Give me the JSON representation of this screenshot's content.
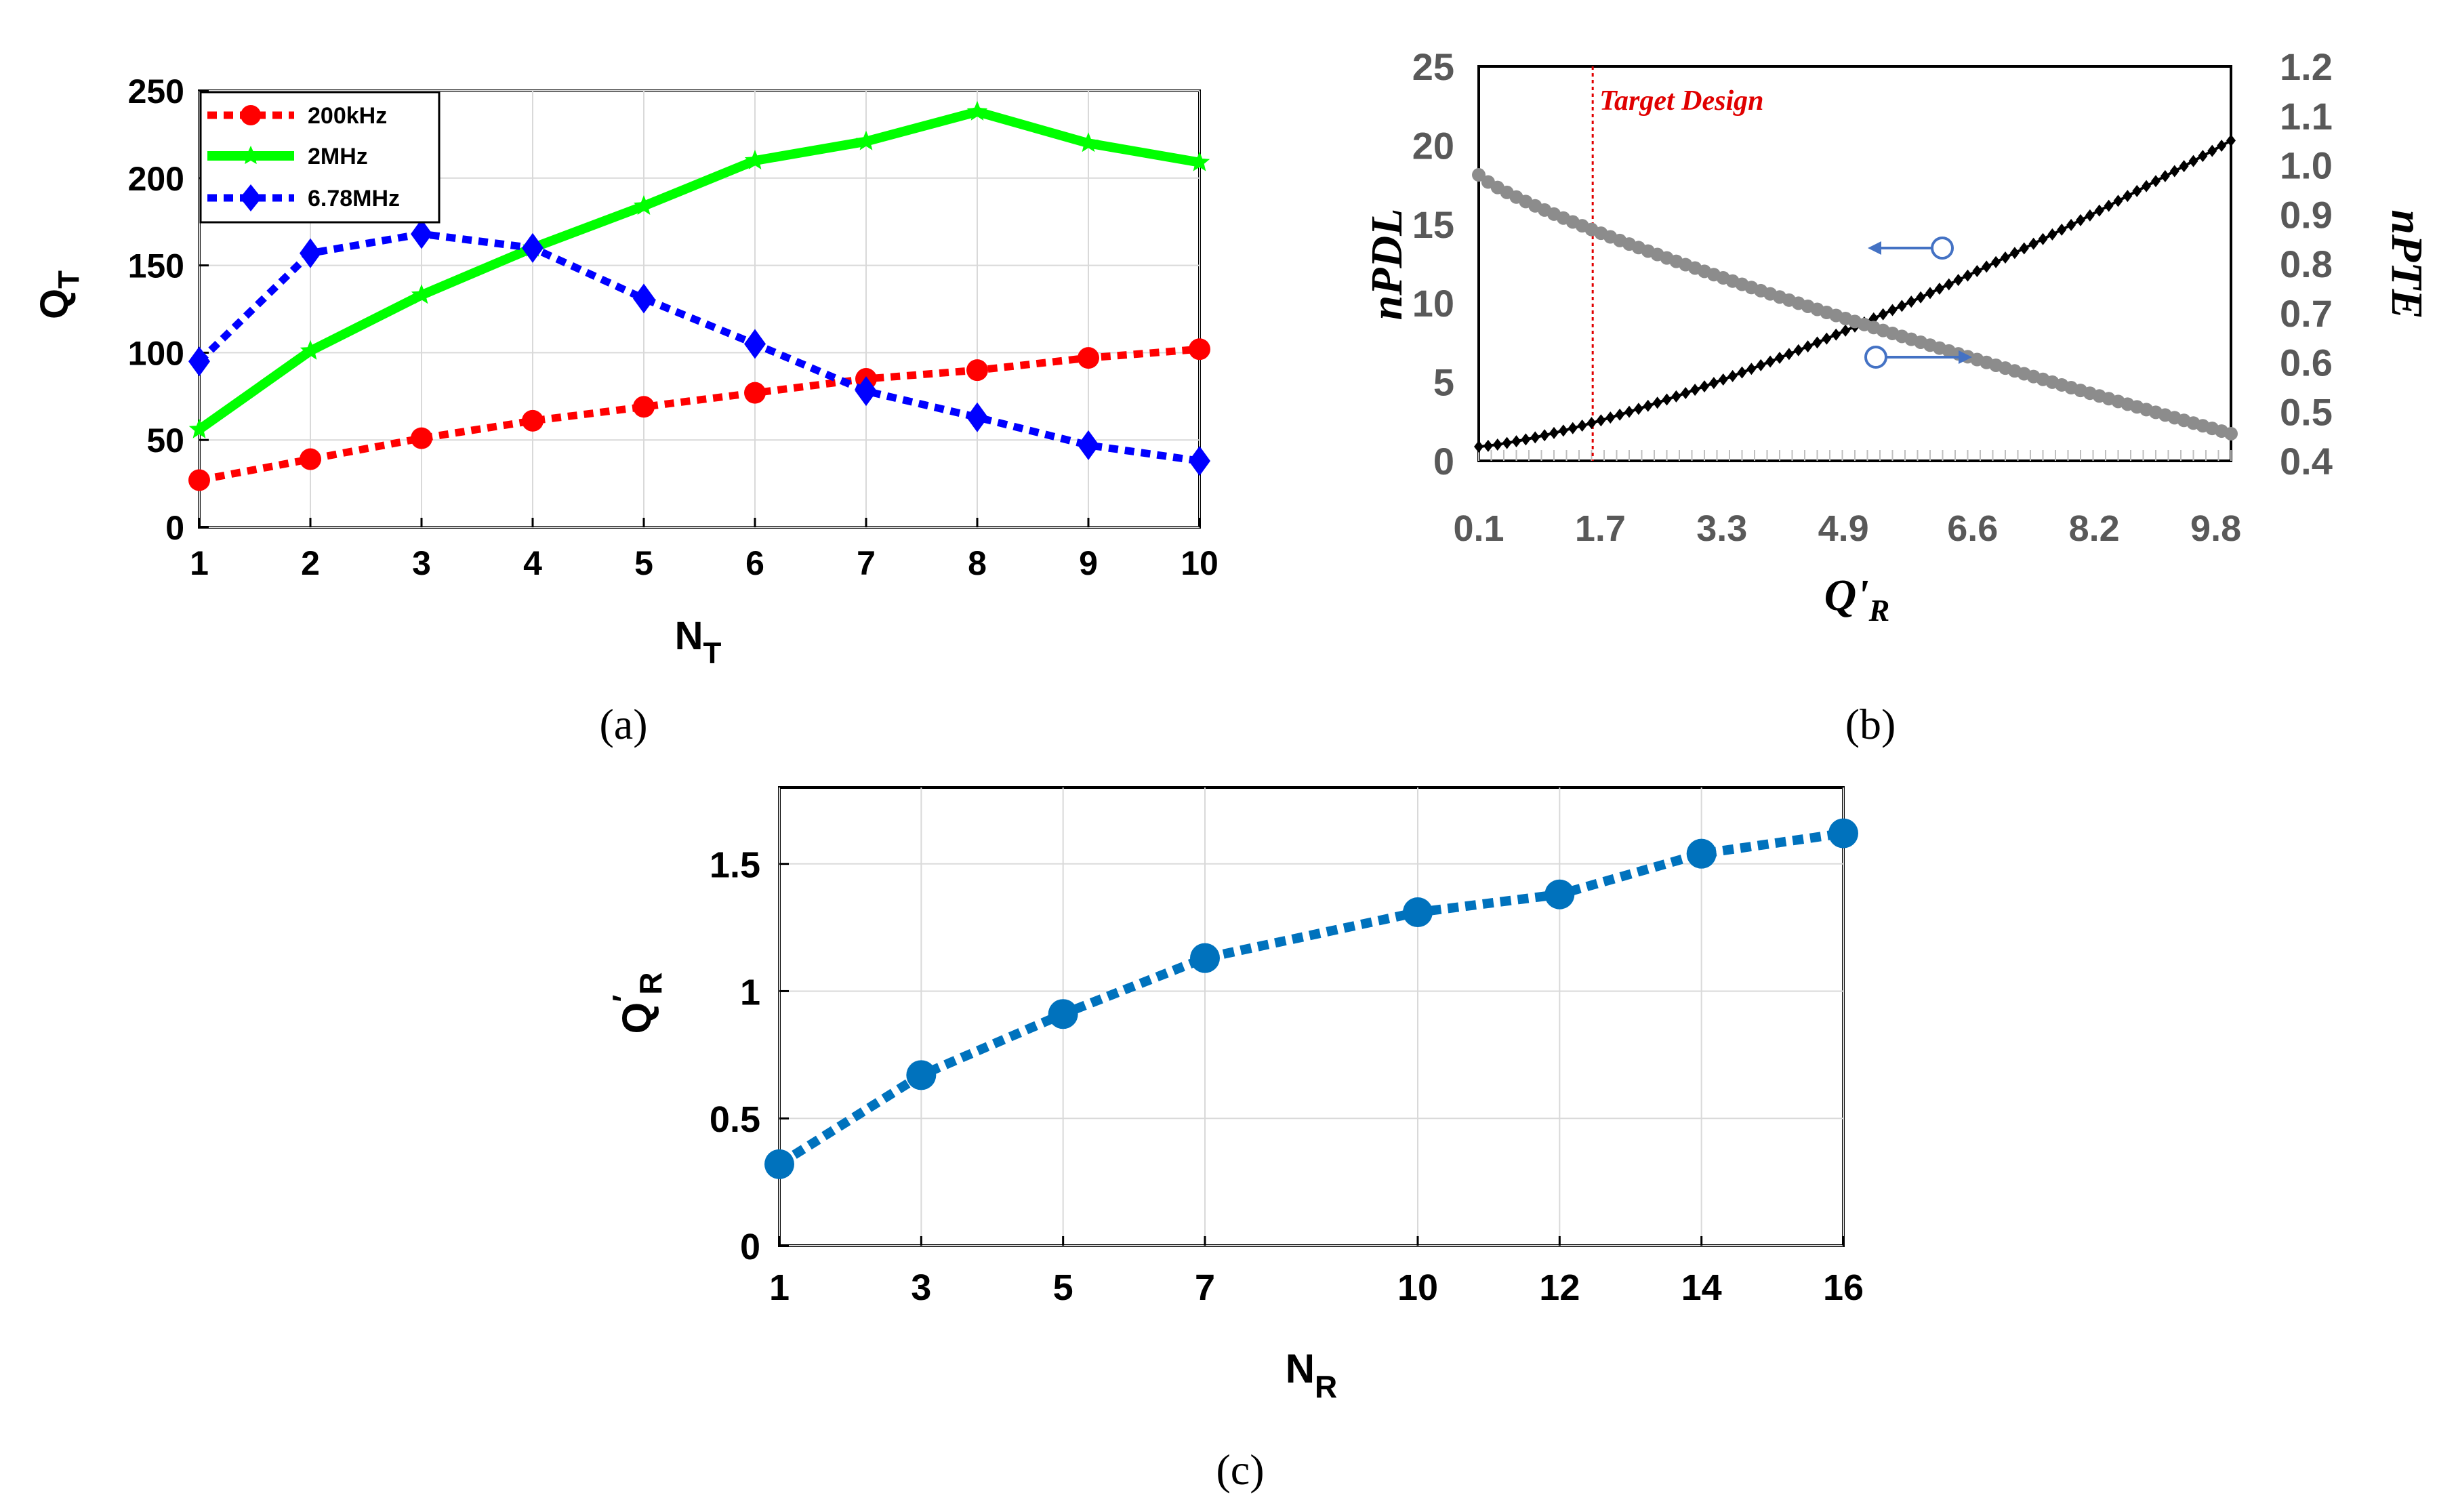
{
  "panel_labels": {
    "a": "(a)",
    "b": "(b)",
    "c": "(c)"
  },
  "colors": {
    "s200": "#ff0000",
    "s2m": "#00ff00",
    "s678": "#0000ff",
    "npdl": "#000000",
    "npte": "#8c8c8c",
    "target": "#e00000",
    "arrow": "#4472c4",
    "qr": "#0072bd",
    "grid": "#d9d9d9"
  },
  "chart_data": [
    {
      "id": "a",
      "type": "line",
      "xlabel": "N",
      "xlabel_sub": "T",
      "ylabel": "Q",
      "ylabel_sub": "T",
      "xlim": [
        1,
        10
      ],
      "ylim": [
        0,
        250
      ],
      "xticks": [
        1,
        2,
        3,
        4,
        5,
        6,
        7,
        8,
        9,
        10
      ],
      "yticks": [
        0,
        50,
        100,
        150,
        200,
        250
      ],
      "grid": true,
      "legend_position": "top-left",
      "x": [
        1,
        2,
        3,
        4,
        5,
        6,
        7,
        8,
        9,
        10
      ],
      "series": [
        {
          "name": "200kHz",
          "marker": "circle",
          "style": "dotted",
          "values": [
            27,
            39,
            51,
            61,
            69,
            77,
            85,
            90,
            97,
            102
          ]
        },
        {
          "name": "2MHz",
          "marker": "star",
          "style": "solid",
          "values": [
            56,
            101,
            133,
            160,
            184,
            210,
            221,
            238,
            220,
            209
          ]
        },
        {
          "name": "6.78MHz",
          "marker": "diamond",
          "style": "dotted",
          "values": [
            95,
            157,
            168,
            160,
            131,
            105,
            78,
            63,
            47,
            38
          ]
        }
      ]
    },
    {
      "id": "b",
      "type": "line",
      "xlabel": "Q'",
      "xlabel_sub": "R",
      "ylabel_left": "nPDL",
      "ylabel_right": "nPTE",
      "xlim": [
        0.1,
        10
      ],
      "ylim_left": [
        0,
        25
      ],
      "ylim_right": [
        0.4,
        1.2
      ],
      "xticks": [
        "0.1",
        "1.7",
        "3.3",
        "4.9",
        "6.6",
        "8.2",
        "9.8"
      ],
      "yticks_left": [
        0,
        5,
        10,
        15,
        20,
        25
      ],
      "yticks_right": [
        "0.4",
        "0.5",
        "0.6",
        "0.7",
        "0.8",
        "0.9",
        "1.0",
        "1.1",
        "1.2"
      ],
      "annotation": "Target Design",
      "target_x": 1.6,
      "series": [
        {
          "name": "nPDL",
          "axis": "left",
          "marker": "diamond",
          "x_range": [
            0.1,
            10
          ],
          "y_start": 0.9,
          "y_end": 20.3,
          "curve_exponent": 1.35
        },
        {
          "name": "nPTE",
          "axis": "right",
          "marker": "circle",
          "x_range": [
            0.1,
            10
          ],
          "y_start": 0.98,
          "y_end": 0.455,
          "curve_exponent": 0.82
        }
      ]
    },
    {
      "id": "c",
      "type": "line",
      "xlabel": "N",
      "xlabel_sub": "R",
      "ylabel": "Q",
      "ylabel_sub": "R",
      "ylabel_prime": "′",
      "xlim": [
        1,
        16
      ],
      "ylim": [
        0,
        1.8
      ],
      "xticks": [
        1,
        3,
        5,
        7,
        10,
        12,
        14,
        16
      ],
      "yticks": [
        "0",
        "0.5",
        "1",
        "1.5"
      ],
      "ytick_values": [
        0,
        0.5,
        1,
        1.5
      ],
      "grid": true,
      "x": [
        1,
        3,
        5,
        7,
        10,
        12,
        14,
        16
      ],
      "series": [
        {
          "name": "Q'R",
          "marker": "circle",
          "style": "dotted",
          "values": [
            0.32,
            0.67,
            0.91,
            1.13,
            1.31,
            1.38,
            1.54,
            1.62
          ]
        }
      ]
    }
  ]
}
